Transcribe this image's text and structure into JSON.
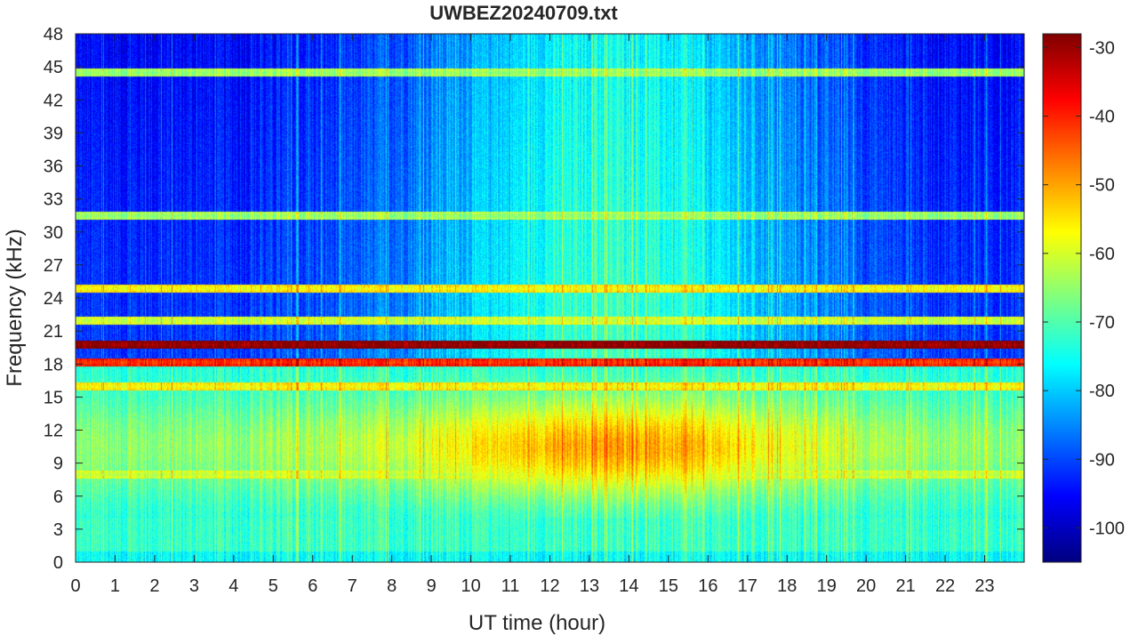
{
  "chart_data": {
    "type": "heatmap",
    "title": "UWBEZ20240709.txt",
    "xlabel": "UT time (hour)",
    "ylabel": "Frequency (kHz)",
    "xlim": [
      0,
      24
    ],
    "ylim": [
      0,
      48
    ],
    "x_ticks": [
      0,
      1,
      2,
      3,
      4,
      5,
      6,
      7,
      8,
      9,
      10,
      11,
      12,
      13,
      14,
      15,
      16,
      17,
      18,
      19,
      20,
      21,
      22,
      23
    ],
    "y_ticks": [
      0,
      3,
      6,
      9,
      12,
      15,
      18,
      21,
      24,
      27,
      30,
      33,
      36,
      39,
      42,
      45,
      48
    ],
    "colorbar": {
      "colormap": "jet",
      "clim": [
        -105,
        -28
      ],
      "ticks": [
        -30,
        -40,
        -50,
        -60,
        -70,
        -80,
        -90,
        -100
      ]
    },
    "colormap_colors": [
      "#00007f",
      "#0000ff",
      "#007fff",
      "#00ffff",
      "#7fff7f",
      "#ffff00",
      "#ff7f00",
      "#ff0000",
      "#7f0000"
    ],
    "description_bands": [
      {
        "freq_khz": 19.8,
        "level_db": -30
      },
      {
        "freq_khz": 18.2,
        "level_db": -42
      },
      {
        "freq_khz": 24.9,
        "level_db": -58
      },
      {
        "freq_khz": 22.0,
        "level_db": -62
      },
      {
        "freq_khz": 44.5,
        "level_db": -66
      },
      {
        "freq_khz": 31.5,
        "level_db": -66
      },
      {
        "freq_khz": 16.0,
        "level_db": -58
      },
      {
        "freq_khz": 8.0,
        "level_db": -62
      }
    ]
  }
}
